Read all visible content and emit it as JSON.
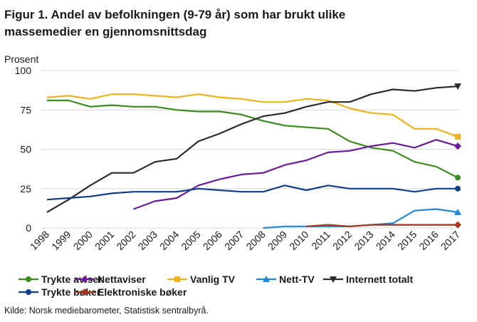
{
  "chart_data": {
    "type": "line",
    "title_lines": [
      "Figur 1. Andel av befolkningen (9-79 år) som har brukt ulike",
      "massemedier en gjennomsnittsdag"
    ],
    "ylabel": "Prosent",
    "xlabel": "",
    "ylim": [
      0,
      100
    ],
    "yticks": [
      0,
      25,
      50,
      75,
      100
    ],
    "grid": "horizontal",
    "legend_position": "bottom",
    "source": "Kilde: Norsk mediebarometer, Statistisk sentralbyrå.",
    "x": [
      "1998",
      "1999",
      "2000",
      "2001",
      "2002",
      "2003",
      "2004",
      "2005",
      "2006",
      "2007",
      "2008",
      "2009",
      "2010",
      "2011",
      "2012",
      "2013",
      "2014",
      "2015",
      "2016",
      "2017"
    ],
    "series": [
      {
        "name": "Trykte aviser",
        "color": "#3a8c1e",
        "marker": "circle",
        "values": [
          81,
          81,
          77,
          78,
          77,
          77,
          75,
          74,
          74,
          72,
          68,
          65,
          64,
          63,
          55,
          51,
          49,
          42,
          39,
          32
        ]
      },
      {
        "name": "Nettaviser",
        "color": "#6a1a9a",
        "marker": "diamond",
        "values": [
          null,
          null,
          null,
          null,
          12,
          17,
          19,
          27,
          31,
          34,
          35,
          40,
          43,
          48,
          49,
          52,
          54,
          51,
          56,
          52
        ]
      },
      {
        "name": "Vanlig TV",
        "color": "#f0b21a",
        "marker": "square",
        "values": [
          83,
          84,
          82,
          85,
          85,
          84,
          83,
          85,
          83,
          82,
          80,
          80,
          82,
          81,
          76,
          73,
          72,
          63,
          63,
          58
        ]
      },
      {
        "name": "Nett-TV",
        "color": "#1f88d8",
        "marker": "triangle-up",
        "values": [
          null,
          null,
          null,
          null,
          null,
          null,
          null,
          null,
          null,
          null,
          0,
          1,
          1,
          1,
          1,
          2,
          3,
          11,
          12,
          10
        ]
      },
      {
        "name": "Internett totalt",
        "color": "#2b2b2b",
        "marker": "triangle-down",
        "values": [
          10,
          18,
          27,
          35,
          35,
          42,
          44,
          55,
          60,
          66,
          71,
          73,
          77,
          80,
          80,
          85,
          88,
          87,
          89,
          90
        ]
      },
      {
        "name": "Trykte bøker",
        "color": "#123c8c",
        "marker": "circle",
        "values": [
          18,
          19,
          20,
          22,
          23,
          23,
          23,
          25,
          24,
          23,
          23,
          27,
          24,
          27,
          25,
          25,
          25,
          23,
          25,
          25
        ]
      },
      {
        "name": "Elektroniske bøker",
        "color": "#a8321c",
        "marker": "diamond",
        "values": [
          null,
          null,
          null,
          null,
          null,
          null,
          null,
          null,
          null,
          null,
          null,
          null,
          1,
          2,
          1,
          2,
          2,
          2,
          2,
          2
        ]
      }
    ]
  }
}
